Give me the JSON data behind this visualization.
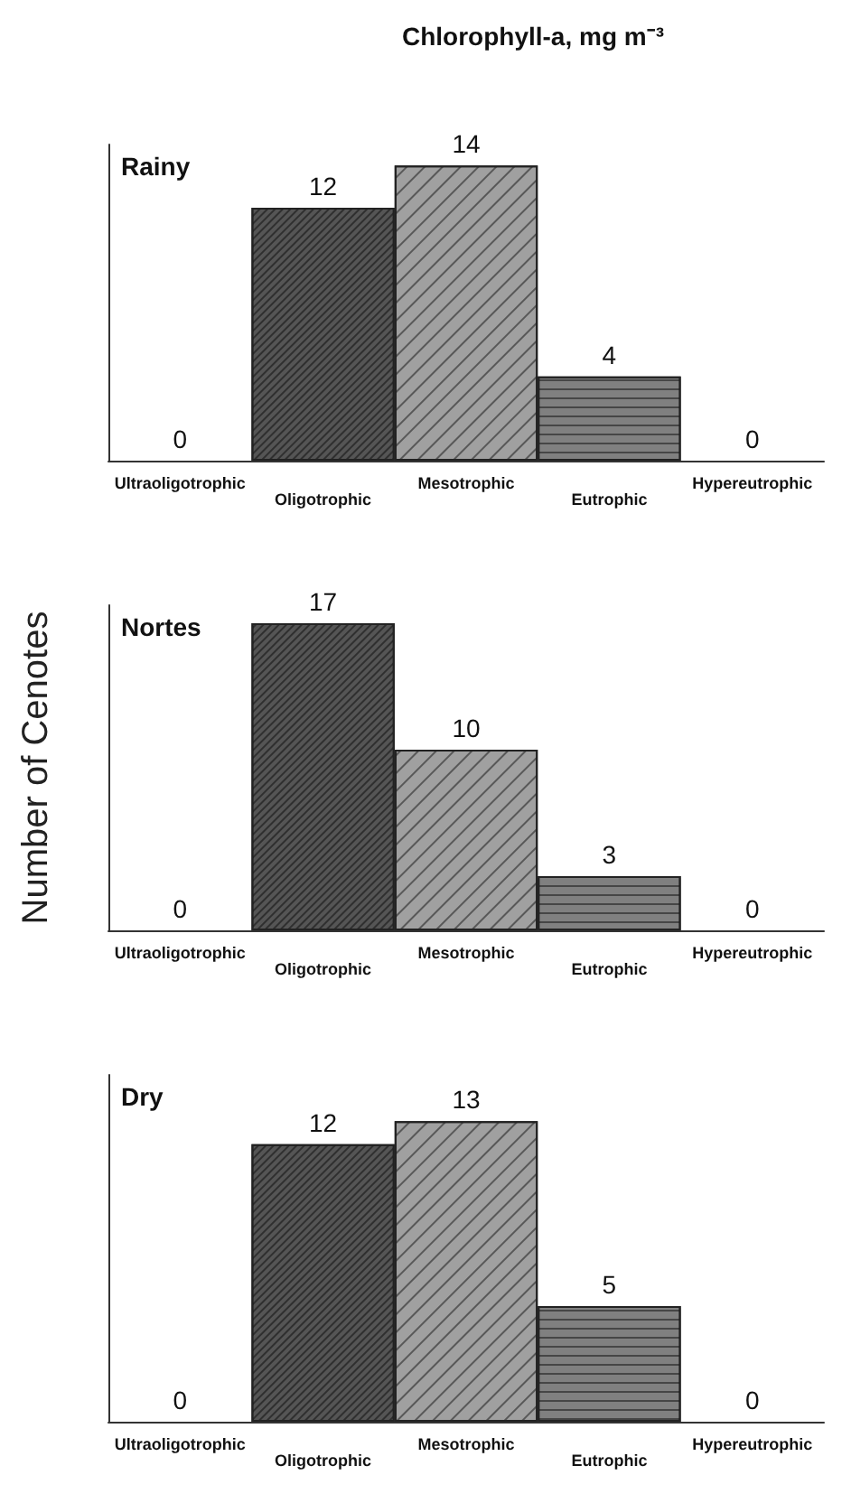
{
  "chart_data": [
    {
      "type": "bar",
      "title": "Rainy",
      "annotations": [
        "Chlorophyll-a, mg m⁻³"
      ],
      "categories": [
        "Ultraoligotrophic",
        "Oligotrophic",
        "Mesotrophic",
        "Eutrophic",
        "Hypereutrophic"
      ],
      "values": [
        0,
        12,
        14,
        4,
        0
      ],
      "colors": [
        "#666666",
        "#555555",
        "#a0a0a0",
        "#808080",
        "#666666"
      ],
      "data_labels": true,
      "tick_labels": "x"
    },
    {
      "type": "bar",
      "title": "Nortes",
      "ylabel": "Number of Cenotes",
      "categories": [
        "Ultraoligotrophic",
        "Oligotrophic",
        "Mesotrophic",
        "Eutrophic",
        "Hypereutrophic"
      ],
      "values": [
        0,
        17,
        10,
        3,
        0
      ],
      "colors": [
        "#666666",
        "#555555",
        "#a0a0a0",
        "#808080",
        "#666666"
      ],
      "data_labels": true,
      "tick_labels": "x"
    },
    {
      "type": "bar",
      "title": "Dry",
      "categories": [
        "Ultraoligotrophic",
        "Oligotrophic",
        "Mesotrophic",
        "Eutrophic",
        "Hypereutrophic"
      ],
      "values": [
        0,
        12,
        13,
        5,
        0
      ],
      "colors": [
        "#666666",
        "#555555",
        "#a0a0a0",
        "#808080",
        "#666666"
      ],
      "data_labels": true,
      "tick_labels": "x"
    }
  ]
}
